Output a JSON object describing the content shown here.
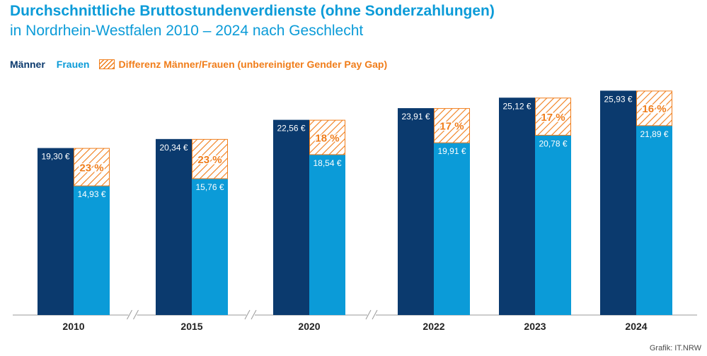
{
  "header": {
    "title": "Durchschnittliche Bruttostundenverdienste (ohne Sonderzahlungen)",
    "subtitle": "in Nordrhein-Westfalen 2010 – 2024 nach Geschlecht"
  },
  "legend": {
    "men": "Männer",
    "women": "Frauen",
    "difference": "Differenz Männer/Frauen (unbereinigter Gender Pay Gap)"
  },
  "credit": "Grafik: IT.NRW",
  "colors": {
    "men": "#0b3a6e",
    "women": "#0b9bd8",
    "gap": "#f07d1a"
  },
  "chart_data": {
    "type": "bar",
    "categories": [
      "2010",
      "2015",
      "2020",
      "2022",
      "2023",
      "2024"
    ],
    "series": [
      {
        "name": "Männer",
        "values": [
          19.3,
          20.34,
          22.56,
          23.91,
          25.12,
          25.93
        ],
        "labels": [
          "19,30 €",
          "20,34 €",
          "22,56 €",
          "23,91 €",
          "25,12 €",
          "25,93 €"
        ]
      },
      {
        "name": "Frauen",
        "values": [
          14.93,
          15.76,
          18.54,
          19.91,
          20.78,
          21.89
        ],
        "labels": [
          "14,93 €",
          "15,76 €",
          "18,54 €",
          "19,91 €",
          "20,78 €",
          "21,89 €"
        ]
      },
      {
        "name": "Differenz Männer/Frauen (unbereinigter Gender Pay Gap)",
        "values": [
          23,
          23,
          18,
          17,
          17,
          16
        ],
        "labels": [
          "23 %",
          "23 %",
          "18 %",
          "17 %",
          "17 %",
          "16 %"
        ]
      }
    ],
    "axis_breaks": [
      "2010-2015",
      "2015-2020",
      "2020-2022"
    ],
    "ylim": [
      0,
      26
    ],
    "grid": false,
    "legend_position": "top-left"
  }
}
